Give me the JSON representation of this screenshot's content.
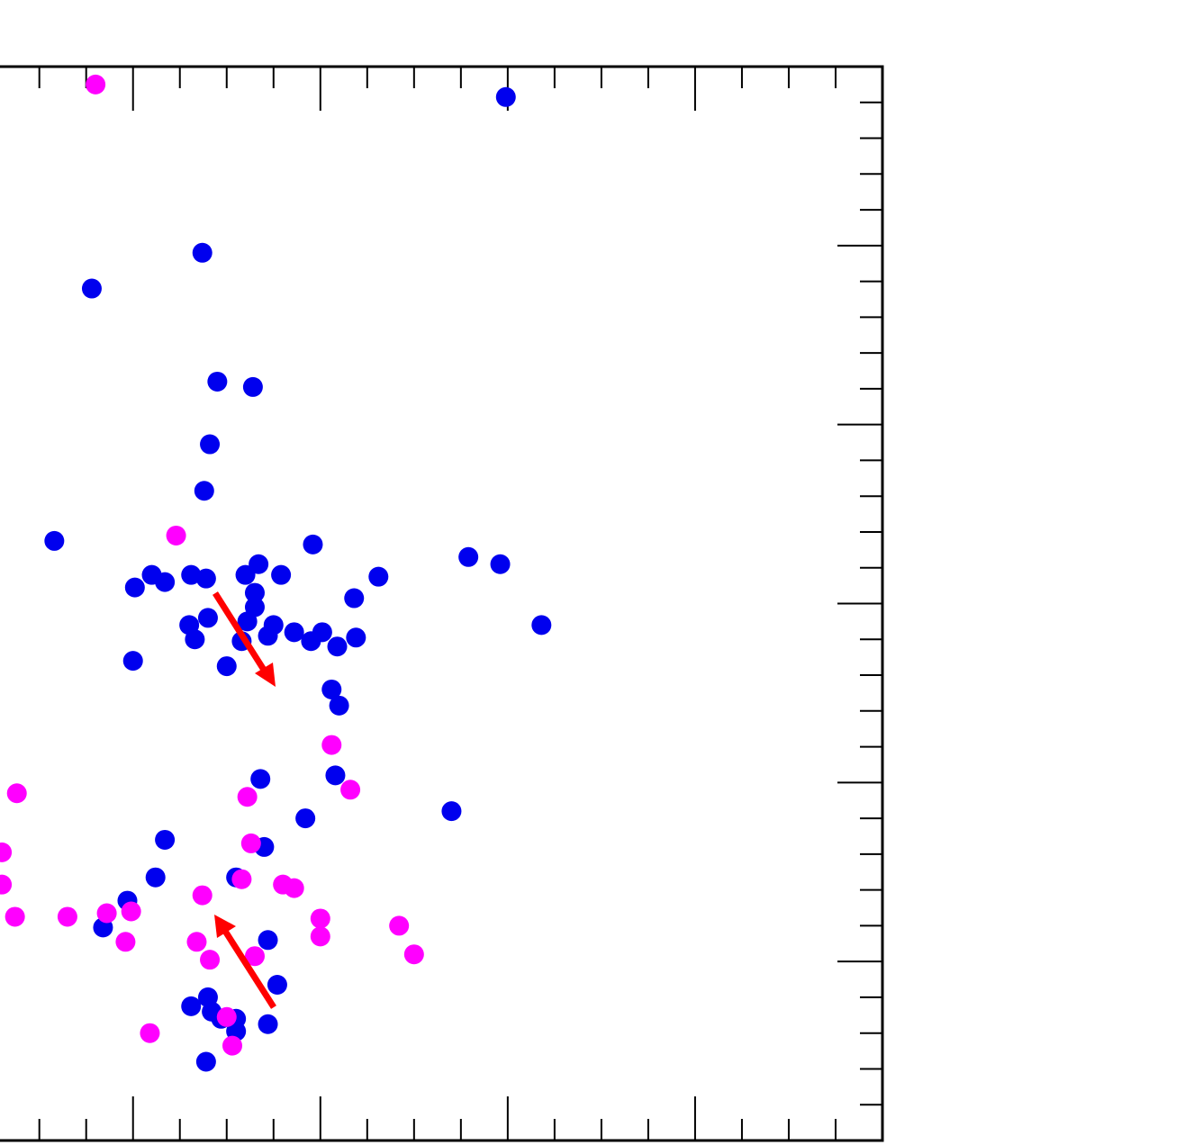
{
  "chart_data": {
    "type": "scatter",
    "xlim": [
      0.29,
      5
    ],
    "ylim": [
      0,
      6
    ],
    "xticks": [
      1,
      2,
      3,
      4
    ],
    "xminorticks": [
      0.5,
      0.75,
      1.25,
      1.5,
      1.75,
      2.25,
      2.5,
      2.75,
      3.25,
      3.5,
      3.75,
      4.25,
      4.5,
      4.75
    ],
    "yticks": [
      1,
      2,
      3,
      4,
      5
    ],
    "yminorticks": [
      0.2,
      0.4,
      0.6,
      0.8,
      1.2,
      1.4,
      1.6,
      1.8,
      2.2,
      2.4,
      2.6,
      2.8,
      3.2,
      3.4,
      3.6,
      3.8,
      4.2,
      4.4,
      4.6,
      4.8,
      5.2,
      5.4,
      5.6,
      5.8
    ],
    "grid": false,
    "series": [
      {
        "color": "#0000ee",
        "x": [
          2.99,
          1.37,
          0.78,
          1.45,
          1.64,
          1.41,
          1.38,
          0.58,
          1.96,
          2.79,
          2.96,
          2.31,
          1.1,
          1.17,
          1.01,
          1.31,
          1.39,
          1.6,
          1.67,
          1.79,
          1.65,
          1.65,
          2.18,
          3.18,
          1.4,
          1.3,
          1.33,
          1.61,
          1.75,
          1.72,
          1.86,
          1.58,
          2.01,
          1.95,
          2.09,
          2.19,
          1.0,
          1.5,
          2.06,
          2.1,
          1.68,
          2.08,
          2.7,
          1.92,
          1.17,
          1.7,
          1.12,
          1.55,
          0.97,
          0.84,
          1.72,
          1.77,
          1.31,
          1.4,
          1.42,
          1.55,
          1.47,
          1.55,
          1.72,
          1.39
        ],
        "values": [
          5.83,
          4.96,
          4.76,
          4.24,
          4.21,
          3.89,
          3.63,
          3.35,
          3.33,
          3.26,
          3.22,
          3.15,
          3.16,
          3.12,
          3.09,
          3.16,
          3.14,
          3.16,
          3.22,
          3.16,
          3.06,
          2.98,
          3.03,
          2.88,
          2.92,
          2.88,
          2.8,
          2.9,
          2.88,
          2.82,
          2.84,
          2.79,
          2.84,
          2.79,
          2.76,
          2.81,
          2.68,
          2.65,
          2.52,
          2.43,
          2.02,
          2.04,
          1.84,
          1.8,
          1.68,
          1.64,
          1.47,
          1.47,
          1.34,
          1.19,
          1.12,
          0.87,
          0.75,
          0.8,
          0.72,
          0.68,
          0.68,
          0.61,
          0.65,
          0.44
        ]
      },
      {
        "color": "#ff00ff",
        "x": [
          0.8,
          1.23,
          2.06,
          0.38,
          1.61,
          2.16,
          1.63,
          0.3,
          0.3,
          1.58,
          1.8,
          1.86,
          1.37,
          0.37,
          0.65,
          0.86,
          0.99,
          2.0,
          2.42,
          2.0,
          0.96,
          1.34,
          1.65,
          1.41,
          2.5,
          1.09,
          1.5,
          1.53
        ],
        "values": [
          5.9,
          3.38,
          2.21,
          1.94,
          1.92,
          1.96,
          1.66,
          1.61,
          1.43,
          1.46,
          1.43,
          1.41,
          1.37,
          1.25,
          1.25,
          1.27,
          1.28,
          1.24,
          1.2,
          1.14,
          1.11,
          1.11,
          1.03,
          1.01,
          1.04,
          0.6,
          0.69,
          0.53
        ]
      }
    ]
  }
}
